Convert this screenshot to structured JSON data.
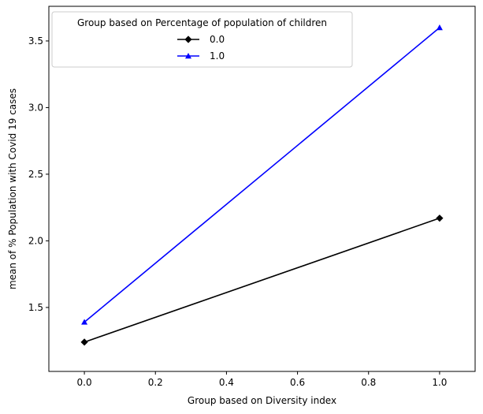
{
  "chart_data": {
    "type": "line",
    "title": "",
    "xlabel": "Group based on Diversity index",
    "ylabel": "mean of % Population with Covid 19 cases",
    "xlim": [
      -0.1,
      1.1
    ],
    "ylim": [
      1.02,
      3.76
    ],
    "xticks": [
      0.0,
      0.2,
      0.4,
      0.6,
      0.8,
      1.0
    ],
    "xtick_labels": [
      "0.0",
      "0.2",
      "0.4",
      "0.6",
      "0.8",
      "1.0"
    ],
    "yticks": [
      1.5,
      2.0,
      2.5,
      3.0,
      3.5
    ],
    "ytick_labels": [
      "1.5",
      "2.0",
      "2.5",
      "3.0",
      "3.5"
    ],
    "grid": false,
    "legend": {
      "title": "Group based on Percentage of population of children",
      "placement": "top-center"
    },
    "series": [
      {
        "name": "0.0",
        "x": [
          0.0,
          1.0
        ],
        "y": [
          1.24,
          2.17
        ],
        "color": "#000000",
        "marker": "diamond"
      },
      {
        "name": "1.0",
        "x": [
          0.0,
          1.0
        ],
        "y": [
          1.39,
          3.6
        ],
        "color": "#0000ff",
        "marker": "triangle"
      }
    ]
  }
}
